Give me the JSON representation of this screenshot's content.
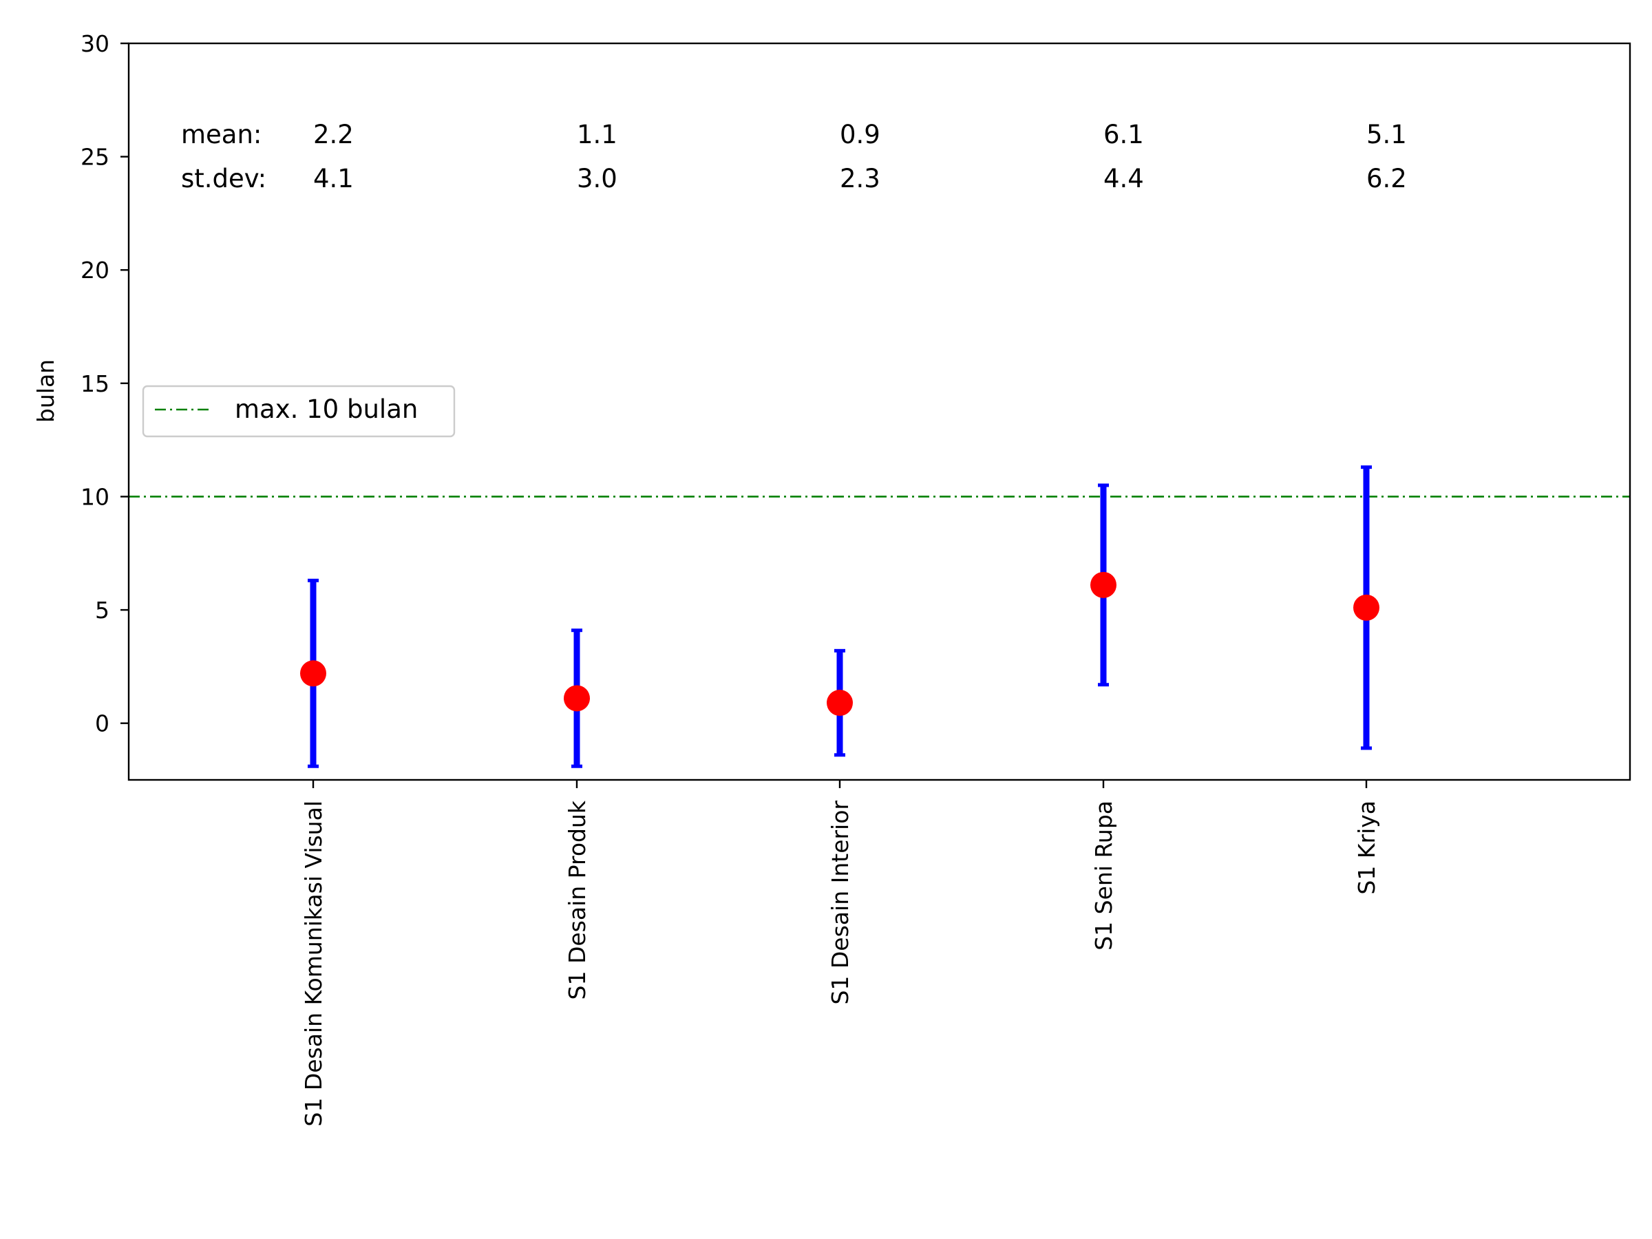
{
  "chart_data": {
    "type": "scatter",
    "subtype": "errorbar",
    "title": "",
    "xlabel": "",
    "ylabel": "bulan",
    "ylim": [
      -2.5,
      30
    ],
    "yticks": [
      0,
      5,
      10,
      15,
      20,
      25,
      30
    ],
    "grid": false,
    "categories": [
      "S1 Desain Komunikasi Visual",
      "S1 Desain Produk",
      "S1 Desain Interior",
      "S1 Seni Rupa",
      "S1 Kriya"
    ],
    "mean": [
      2.2,
      1.1,
      0.9,
      6.1,
      5.1
    ],
    "stdev": [
      4.1,
      3.0,
      2.3,
      4.4,
      6.2
    ],
    "point_color": "#ff0000",
    "errorbar_color": "#0000ff",
    "reference_line": {
      "y": 10,
      "label": "max. 10 bulan",
      "color": "#008000",
      "style": "dash-dot"
    },
    "legend": {
      "position": "center-left",
      "entries": [
        "max. 10 bulan"
      ]
    },
    "stats_labels": {
      "mean_label": "mean:",
      "stdev_label": "st.dev:",
      "mean_values": [
        "2.2",
        "1.1",
        "0.9",
        "6.1",
        "5.1"
      ],
      "stdev_values": [
        "4.1",
        "3.0",
        "2.3",
        "4.4",
        "6.2"
      ]
    }
  }
}
